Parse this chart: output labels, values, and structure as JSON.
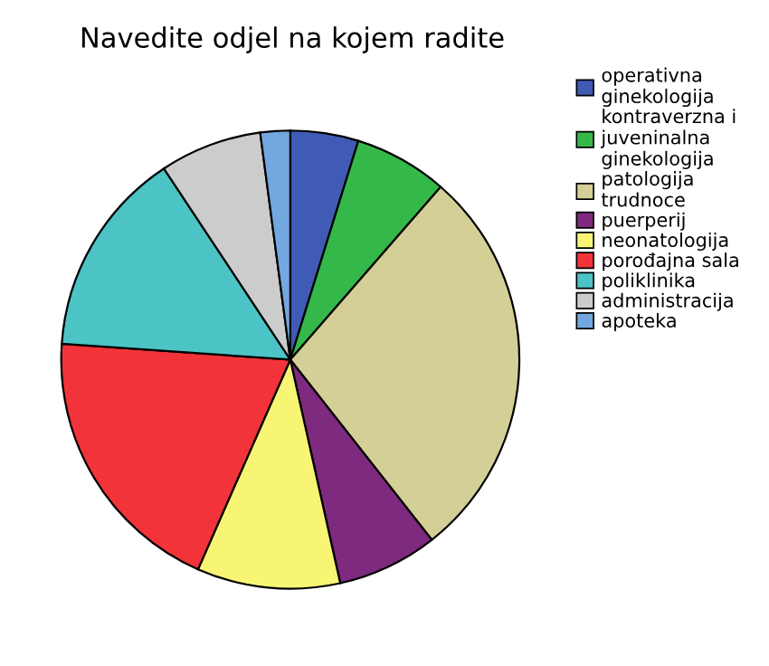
{
  "chart_data": {
    "type": "pie",
    "title": "Navedite odjel na kojem radite",
    "categories": [
      "operativna ginekologija",
      "kontraverzna i juveninalna ginekologija",
      "patologija trudnoce",
      "puerperij",
      "neonatologija",
      "porođajna sala",
      "poliklinika",
      "administracija",
      "apoteka"
    ],
    "values": [
      4.8,
      6.6,
      28.0,
      7.1,
      10.1,
      19.5,
      14.6,
      7.2,
      2.1
    ],
    "colors": [
      "#3f5bb5",
      "#34b84a",
      "#d4cf96",
      "#7e2a7e",
      "#f8f575",
      "#f3333a",
      "#4cc4c6",
      "#cccccc",
      "#73a7df"
    ],
    "legend": "top right"
  }
}
